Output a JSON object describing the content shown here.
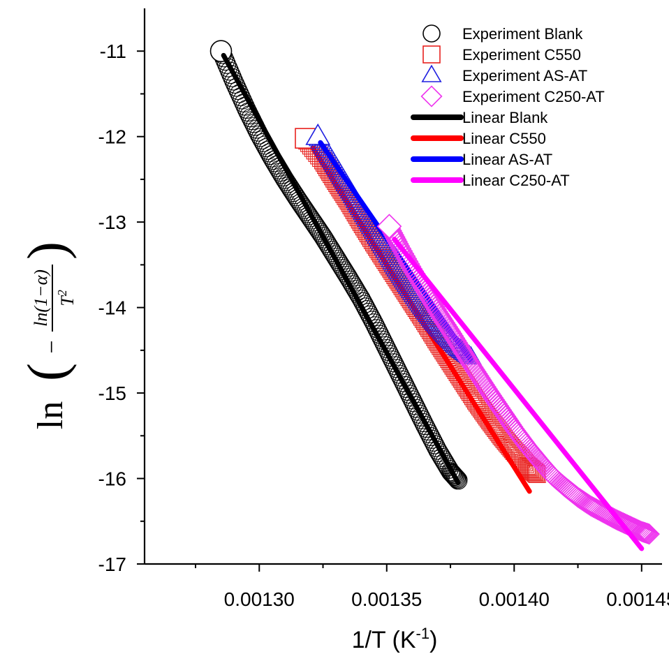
{
  "chart_data": {
    "type": "scatter",
    "xlabel": {
      "base": "1/T (K",
      "sup": "-1",
      "close": ")"
    },
    "ylabel": {
      "ln": "ln",
      "minus": "−",
      "num": "ln(1−α)",
      "den_base": "T",
      "den_sup": "2"
    },
    "xlim": [
      0.001255,
      0.001458
    ],
    "ylim": [
      -17,
      -10.5
    ],
    "x_ticks": [
      "0.00130",
      "0.00135",
      "0.00140",
      "0.00145"
    ],
    "x_tick_values": [
      0.0013,
      0.00135,
      0.0014,
      0.00145
    ],
    "y_ticks": [
      "-11",
      "-12",
      "-13",
      "-14",
      "-15",
      "-16",
      "-17"
    ],
    "y_tick_values": [
      -11,
      -12,
      -13,
      -14,
      -15,
      -16,
      -17
    ],
    "legend_position": "top-right",
    "legend": [
      {
        "label": "Experiment Blank",
        "kind": "marker",
        "shape": "circle",
        "color": "#000000"
      },
      {
        "label": "Experiment C550",
        "kind": "marker",
        "shape": "square",
        "color": "#e8211e"
      },
      {
        "label": "Experiment AS-AT",
        "kind": "marker",
        "shape": "triangle",
        "color": "#1f1fe0"
      },
      {
        "label": "Experiment C250-AT",
        "kind": "marker",
        "shape": "diamond",
        "color": "#ee33ee"
      },
      {
        "label": "Linear Blank",
        "kind": "line",
        "color": "#000000"
      },
      {
        "label": "Linear C550",
        "kind": "line",
        "color": "#ff0000"
      },
      {
        "label": "Linear AS-AT",
        "kind": "line",
        "color": "#0000ff"
      },
      {
        "label": "Linear C250-AT",
        "kind": "line",
        "color": "#ff00ff"
      }
    ],
    "series": [
      {
        "name": "Experiment Blank",
        "kind": "experiment",
        "marker": "circle",
        "color": "#000000",
        "x": [
          0.001285,
          0.00129,
          0.001295,
          0.0013,
          0.001305,
          0.00131,
          0.001315,
          0.00132,
          0.001325,
          0.00133,
          0.001335,
          0.00134,
          0.001345,
          0.00135,
          0.001355,
          0.00136,
          0.001365,
          0.00137,
          0.001375,
          0.001378
        ],
        "y": [
          -11.0,
          -11.35,
          -11.68,
          -11.98,
          -12.25,
          -12.5,
          -12.73,
          -12.95,
          -13.17,
          -13.41,
          -13.65,
          -13.9,
          -14.18,
          -14.48,
          -14.78,
          -15.08,
          -15.38,
          -15.67,
          -15.92,
          -16.02
        ]
      },
      {
        "name": "Linear Blank",
        "kind": "linear",
        "color": "#000000",
        "x": [
          0.001286,
          0.001378
        ],
        "y": [
          -11.05,
          -16.05
        ]
      },
      {
        "name": "Experiment C550",
        "kind": "experiment",
        "marker": "square",
        "color": "#e8211e",
        "x": [
          0.001318,
          0.001325,
          0.00133,
          0.001335,
          0.00134,
          0.001345,
          0.00135,
          0.001355,
          0.00136,
          0.001365,
          0.00137,
          0.001375,
          0.00138,
          0.001385,
          0.00139,
          0.001395,
          0.0014,
          0.001405,
          0.001409
        ],
        "y": [
          -12.02,
          -12.28,
          -12.52,
          -12.75,
          -13.0,
          -13.24,
          -13.47,
          -13.7,
          -13.93,
          -14.16,
          -14.4,
          -14.63,
          -14.86,
          -15.09,
          -15.3,
          -15.5,
          -15.68,
          -15.85,
          -15.95
        ]
      },
      {
        "name": "Linear C550",
        "kind": "linear",
        "color": "#ff0000",
        "x": [
          0.001321,
          0.001406
        ],
        "y": [
          -12.13,
          -16.15
        ]
      },
      {
        "name": "Experiment AS-AT",
        "kind": "experiment",
        "marker": "triangle",
        "color": "#1f1fe0",
        "x": [
          0.001323,
          0.001328,
          0.001333,
          0.001338,
          0.001343,
          0.001348,
          0.001353,
          0.001358,
          0.001363,
          0.001368,
          0.001373,
          0.001378,
          0.001383
        ],
        "y": [
          -12.0,
          -12.25,
          -12.5,
          -12.75,
          -13.0,
          -13.25,
          -13.5,
          -13.73,
          -13.95,
          -14.15,
          -14.32,
          -14.47,
          -14.58
        ]
      },
      {
        "name": "Linear AS-AT",
        "kind": "linear",
        "color": "#0000ff",
        "x": [
          0.001324,
          0.001383
        ],
        "y": [
          -12.07,
          -14.62
        ]
      },
      {
        "name": "Experiment C250-AT",
        "kind": "experiment",
        "marker": "diamond",
        "color": "#ee33ee",
        "x": [
          0.001351,
          0.001355,
          0.00136,
          0.001365,
          0.00137,
          0.001375,
          0.00138,
          0.001385,
          0.00139,
          0.001395,
          0.0014,
          0.001405,
          0.00141,
          0.001415,
          0.00142,
          0.001425,
          0.00143,
          0.001435,
          0.00144,
          0.001445,
          0.00145,
          0.001453
        ],
        "y": [
          -13.05,
          -13.28,
          -13.55,
          -13.8,
          -14.05,
          -14.28,
          -14.52,
          -14.75,
          -14.98,
          -15.2,
          -15.42,
          -15.62,
          -15.8,
          -15.97,
          -16.1,
          -16.22,
          -16.32,
          -16.4,
          -16.48,
          -16.55,
          -16.62,
          -16.65
        ]
      },
      {
        "name": "Linear C250-AT",
        "kind": "linear",
        "color": "#ff00ff",
        "x": [
          0.001353,
          0.00145
        ],
        "y": [
          -13.2,
          -16.82
        ]
      }
    ]
  }
}
